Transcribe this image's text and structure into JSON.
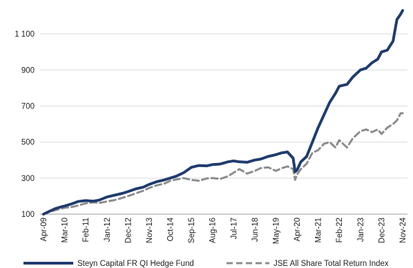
{
  "chart_data": {
    "type": "line",
    "title": "",
    "xlabel": "",
    "ylabel": "",
    "ylim": [
      100,
      1250
    ],
    "yticks": [
      100,
      300,
      500,
      700,
      900,
      1100
    ],
    "ytick_labels": [
      "100",
      "300",
      "500",
      "700",
      "900",
      "1 100"
    ],
    "grid": "horizontal",
    "legend_position": "bottom",
    "xtick_labels": [
      "Apr-09",
      "Mar-10",
      "Feb-11",
      "Jan-12",
      "Dec-12",
      "Nov-13",
      "Oct-14",
      "Sep-15",
      "Aug-16",
      "Jul-17",
      "Jun-18",
      "May-19",
      "Apr-20",
      "Mar-21",
      "Feb-22",
      "Jan-23",
      "Dec-23",
      "Nov-24"
    ],
    "x": [
      "Apr-09",
      "Jul-09",
      "Oct-09",
      "Jan-10",
      "Mar-10",
      "Jul-10",
      "Oct-10",
      "Feb-11",
      "Jun-11",
      "Sep-11",
      "Jan-12",
      "May-12",
      "Sep-12",
      "Dec-12",
      "Apr-13",
      "Aug-13",
      "Nov-13",
      "Mar-14",
      "Jul-14",
      "Oct-14",
      "Jan-15",
      "May-15",
      "Sep-15",
      "Jan-16",
      "May-16",
      "Aug-16",
      "Dec-16",
      "Apr-17",
      "Jul-17",
      "Oct-17",
      "Feb-18",
      "Jun-18",
      "Sep-18",
      "Jan-19",
      "May-19",
      "Aug-19",
      "Nov-19",
      "Feb-20",
      "Mar-20",
      "Apr-20",
      "Jun-20",
      "Sep-20",
      "Dec-20",
      "Mar-21",
      "Jun-21",
      "Sep-21",
      "Dec-21",
      "Feb-22",
      "Jun-22",
      "Sep-22",
      "Jan-23",
      "Apr-23",
      "Jul-23",
      "Oct-23",
      "Dec-23",
      "Mar-24",
      "Jun-24",
      "Aug-24",
      "Oct-24",
      "Nov-24"
    ],
    "series": [
      {
        "name": "Steyn Capital FR QI Hedge Fund",
        "color": "#1f3c6e",
        "style": "solid",
        "values": [
          100,
          115,
          130,
          140,
          145,
          158,
          170,
          175,
          172,
          178,
          195,
          205,
          215,
          225,
          240,
          250,
          265,
          280,
          290,
          300,
          310,
          330,
          360,
          370,
          368,
          375,
          378,
          390,
          395,
          390,
          388,
          400,
          405,
          420,
          430,
          440,
          445,
          410,
          335,
          345,
          390,
          420,
          500,
          580,
          650,
          720,
          770,
          810,
          820,
          860,
          900,
          910,
          940,
          960,
          1000,
          1010,
          1060,
          1180,
          1210,
          1230
        ],
        "stroke_width": 4
      },
      {
        "name": "JSE All Share Total Return Index",
        "color": "#8c8c8c",
        "style": "dashed",
        "values": [
          100,
          112,
          122,
          130,
          135,
          140,
          148,
          160,
          165,
          162,
          170,
          178,
          190,
          200,
          215,
          230,
          245,
          260,
          270,
          285,
          292,
          300,
          290,
          285,
          298,
          300,
          295,
          310,
          330,
          350,
          325,
          340,
          355,
          360,
          340,
          355,
          365,
          350,
          290,
          320,
          350,
          380,
          440,
          455,
          490,
          500,
          470,
          510,
          470,
          520,
          560,
          570,
          555,
          570,
          545,
          580,
          600,
          620,
          660,
          660
        ],
        "stroke_width": 3
      }
    ]
  }
}
